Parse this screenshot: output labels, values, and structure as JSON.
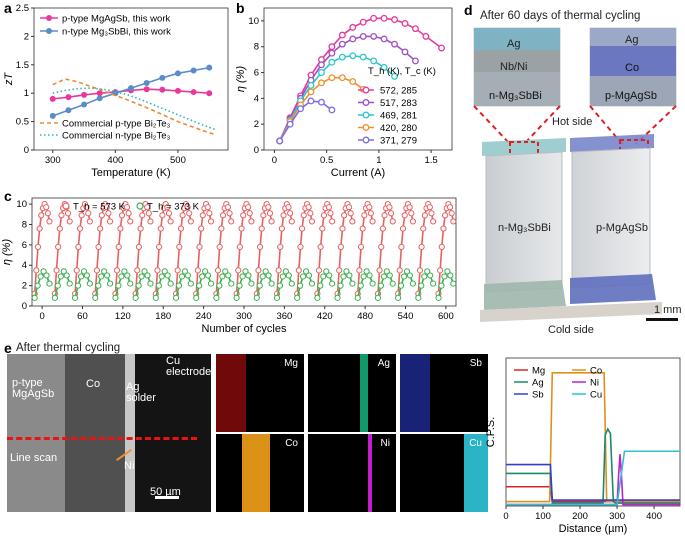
{
  "panels": {
    "a": {
      "label": "a",
      "legend": [
        {
          "text": "p-type MgAgSb, this work",
          "color": "#e8399b"
        },
        {
          "text": "n-type Mg₃SbBi, this work",
          "color": "#5b8cc8"
        },
        {
          "text": "Commercial p-type Bi₂Te₃",
          "color": "#f08a30"
        },
        {
          "text": "Commercial n-type Bi₂Te₃",
          "color": "#2bb5c0"
        }
      ]
    },
    "b": {
      "label": "b",
      "legend_title": "T_h (K), T_c (K)"
    },
    "c": {
      "label": "c"
    },
    "d": {
      "label": "d",
      "title": "After 60 days of thermal cycling",
      "inset_left": {
        "top": "Ag",
        "middle": "Nb/Ni",
        "bottom": "n-Mg₃SbBi"
      },
      "inset_right": {
        "top": "Ag",
        "middle": "Co",
        "bottom": "p-MgAgSb"
      },
      "hot_side": "Hot side",
      "cold_side": "Cold side",
      "leg_left": "n-Mg₃SbBi",
      "leg_right": "p-MgAgSb",
      "scale": "1 mm"
    },
    "e": {
      "label": "e",
      "title": "After thermal cycling",
      "sem": {
        "layer1": "p-type MgAgSb",
        "layer2": "Co",
        "layer3": "Ag solder",
        "layer4": "Cu electrode",
        "line_scan": "Line scan",
        "ni": "Ni",
        "scale": "50 µm"
      },
      "maps": [
        {
          "el": "Mg",
          "color": "#cc1010"
        },
        {
          "el": "Ag",
          "color": "#13a878"
        },
        {
          "el": "Sb",
          "color": "#2b3fd8"
        },
        {
          "el": "Co",
          "color": "#e89a18"
        },
        {
          "el": "Ni",
          "color": "#c21fcf"
        },
        {
          "el": "Cu",
          "color": "#2fc8dc"
        }
      ]
    }
  },
  "chart_data": [
    {
      "id": "a",
      "type": "line",
      "xlabel": "Temperature (K)",
      "ylabel": "zT",
      "xlim": [
        270,
        580
      ],
      "ylim": [
        0,
        2.5
      ],
      "xticks": [
        300,
        400,
        500
      ],
      "yticks": [
        0,
        0.5,
        1.0,
        1.5,
        2.0,
        2.5
      ],
      "series": [
        {
          "name": "p-type MgAgSb, this work",
          "color": "#e8399b",
          "style": "marker",
          "x": [
            300,
            325,
            350,
            375,
            400,
            425,
            450,
            475,
            500,
            525,
            550
          ],
          "y": [
            0.9,
            0.93,
            0.97,
            1.0,
            1.02,
            1.05,
            1.07,
            1.06,
            1.04,
            1.02,
            1.0
          ]
        },
        {
          "name": "n-type Mg₃SbBi, this work",
          "color": "#5b8cc8",
          "style": "marker",
          "x": [
            300,
            325,
            350,
            375,
            400,
            425,
            450,
            475,
            500,
            525,
            550
          ],
          "y": [
            0.6,
            0.7,
            0.8,
            0.91,
            1.0,
            1.09,
            1.18,
            1.27,
            1.35,
            1.4,
            1.45
          ]
        },
        {
          "name": "Commercial p-type Bi₂Te₃",
          "color": "#f08a30",
          "style": "dash",
          "x": [
            300,
            320,
            340,
            360,
            380,
            400,
            420,
            440,
            460,
            480,
            500,
            520,
            540,
            560
          ],
          "y": [
            1.15,
            1.25,
            1.2,
            1.12,
            1.05,
            0.96,
            0.88,
            0.79,
            0.7,
            0.6,
            0.5,
            0.42,
            0.34,
            0.27
          ]
        },
        {
          "name": "Commercial n-type Bi₂Te₃",
          "color": "#2bb5c0",
          "style": "dot",
          "x": [
            300,
            320,
            340,
            360,
            380,
            400,
            420,
            440,
            460,
            480,
            500,
            520,
            540,
            560
          ],
          "y": [
            1.0,
            1.05,
            1.08,
            1.09,
            1.07,
            1.03,
            0.97,
            0.89,
            0.8,
            0.71,
            0.62,
            0.53,
            0.44,
            0.36
          ]
        }
      ]
    },
    {
      "id": "b",
      "type": "line",
      "xlabel": "Current (A)",
      "ylabel": "η (%)",
      "xlim": [
        -0.1,
        1.7
      ],
      "ylim": [
        0,
        11
      ],
      "xticks": [
        0,
        0.5,
        1.0,
        1.5
      ],
      "yticks": [
        0,
        2,
        4,
        6,
        8,
        10
      ],
      "series": [
        {
          "name": "572, 285",
          "color": "#e8399b",
          "x": [
            0.05,
            0.15,
            0.25,
            0.35,
            0.45,
            0.55,
            0.65,
            0.75,
            0.85,
            0.95,
            1.05,
            1.15,
            1.25,
            1.35,
            1.45,
            1.6
          ],
          "y": [
            0.7,
            2.5,
            4.2,
            5.8,
            7.0,
            8.0,
            8.9,
            9.5,
            9.9,
            10.2,
            10.2,
            10.1,
            9.8,
            9.4,
            8.8,
            7.9
          ]
        },
        {
          "name": "517, 283",
          "color": "#a14ec8",
          "x": [
            0.05,
            0.15,
            0.25,
            0.35,
            0.45,
            0.55,
            0.65,
            0.75,
            0.85,
            0.95,
            1.05,
            1.15,
            1.25,
            1.35
          ],
          "y": [
            0.7,
            2.4,
            4.0,
            5.4,
            6.6,
            7.5,
            8.2,
            8.6,
            8.8,
            8.8,
            8.6,
            8.2,
            7.6,
            6.9
          ]
        },
        {
          "name": "469, 281",
          "color": "#2ec8c8",
          "x": [
            0.05,
            0.15,
            0.25,
            0.35,
            0.45,
            0.55,
            0.65,
            0.75,
            0.85,
            0.95,
            1.05,
            1.15
          ],
          "y": [
            0.7,
            2.3,
            3.8,
            5.0,
            6.0,
            6.8,
            7.2,
            7.3,
            7.2,
            6.9,
            6.4,
            5.7
          ]
        },
        {
          "name": "420, 280",
          "color": "#f09030",
          "x": [
            0.05,
            0.15,
            0.25,
            0.35,
            0.45,
            0.55,
            0.65,
            0.75,
            0.85
          ],
          "y": [
            0.7,
            2.2,
            3.5,
            4.5,
            5.2,
            5.6,
            5.6,
            5.3,
            4.7
          ]
        },
        {
          "name": "371, 279",
          "color": "#7a6ee8",
          "x": [
            0.05,
            0.15,
            0.25,
            0.35,
            0.45,
            0.55
          ],
          "y": [
            0.7,
            2.0,
            3.2,
            3.8,
            3.7,
            3.1
          ]
        }
      ]
    },
    {
      "id": "c",
      "type": "scatter",
      "xlabel": "Number of cycles",
      "ylabel": "η (%)",
      "xlim": [
        -15,
        615
      ],
      "ylim": [
        0,
        10.6
      ],
      "xticks": [
        0,
        60,
        120,
        180,
        240,
        300,
        360,
        420,
        480,
        540,
        600
      ],
      "yticks": [
        0,
        2,
        4,
        6,
        8,
        10
      ],
      "cycle_period": 30,
      "cycles_drawn": 21,
      "series": [
        {
          "name": "T_h = 573 K",
          "color": "#e86060",
          "profile": [
            1.2,
            3.5,
            5.8,
            7.6,
            8.9,
            9.6,
            10.0,
            9.7,
            9.1,
            8.3
          ]
        },
        {
          "name": "T_h = 373 K",
          "color": "#3cb050",
          "profile": [
            0.8,
            2.0,
            2.9,
            3.4,
            3.0,
            2.2
          ]
        }
      ]
    },
    {
      "id": "e",
      "type": "line",
      "xlabel": "Distance (µm)",
      "ylabel": "C.P.S.",
      "xlim": [
        0,
        470
      ],
      "ylim": [
        0,
        10
      ],
      "xticks": [
        0,
        100,
        200,
        300,
        400
      ],
      "legend": [
        {
          "name": "Mg",
          "color": "#d62728"
        },
        {
          "name": "Co",
          "color": "#e0901a"
        },
        {
          "name": "Ag",
          "color": "#1a8a6a"
        },
        {
          "name": "Ni",
          "color": "#c21fcf"
        },
        {
          "name": "Sb",
          "color": "#3040d0"
        },
        {
          "name": "Cu",
          "color": "#30c0d0"
        }
      ],
      "series": [
        {
          "name": "Mg",
          "color": "#d62728",
          "x": [
            0,
            120,
            125,
            470
          ],
          "y": [
            1.3,
            1.3,
            0.3,
            0.3
          ]
        },
        {
          "name": "Co",
          "color": "#e0901a",
          "x": [
            0,
            118,
            125,
            265,
            272,
            470
          ],
          "y": [
            0.3,
            0.3,
            9.0,
            9.0,
            0.3,
            0.3
          ]
        },
        {
          "name": "Ag",
          "color": "#1a8a6a",
          "x": [
            0,
            120,
            125,
            262,
            268,
            275,
            282,
            290,
            296,
            470
          ],
          "y": [
            2.2,
            2.2,
            0.2,
            0.2,
            4.8,
            5.2,
            4.9,
            0.3,
            0.2,
            0.2
          ]
        },
        {
          "name": "Ni",
          "color": "#c21fcf",
          "x": [
            0,
            300,
            304,
            308,
            312,
            316,
            470
          ],
          "y": [
            0.1,
            0.1,
            2.0,
            3.5,
            2.0,
            0.1,
            0.1
          ]
        },
        {
          "name": "Sb",
          "color": "#3040d0",
          "x": [
            0,
            120,
            125,
            470
          ],
          "y": [
            2.8,
            2.8,
            0.4,
            0.4
          ]
        },
        {
          "name": "Cu",
          "color": "#30c0d0",
          "x": [
            0,
            300,
            320,
            470
          ],
          "y": [
            0.1,
            0.1,
            3.7,
            3.7
          ]
        }
      ]
    }
  ]
}
